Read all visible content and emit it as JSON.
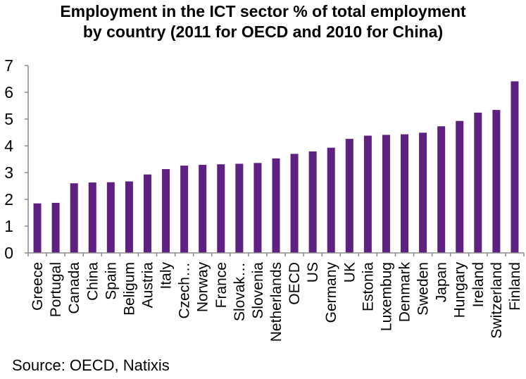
{
  "chart_data": {
    "type": "bar",
    "title_lines": [
      "Employment in the ICT sector % of total employment",
      "by country (2011 for OECD and 2010 for China)"
    ],
    "categories": [
      "Greece",
      "Portugal",
      "Canada",
      "China",
      "Spain",
      "Beligum",
      "Austria",
      "Italy",
      "Czech…",
      "Norway",
      "France",
      "Slovak…",
      "Slovenia",
      "Netherlands",
      "OECD",
      "US",
      "Germany",
      "UK",
      "Estonia",
      "Luxembug",
      "Denmark",
      "Sweden",
      "Japan",
      "Hungary",
      "Ireland",
      "Switzerland",
      "Finland"
    ],
    "values": [
      1.85,
      1.87,
      2.6,
      2.63,
      2.64,
      2.67,
      2.93,
      3.13,
      3.26,
      3.29,
      3.31,
      3.33,
      3.36,
      3.53,
      3.7,
      3.79,
      3.93,
      4.26,
      4.38,
      4.41,
      4.43,
      4.49,
      4.73,
      4.93,
      5.24,
      5.34,
      6.41
    ],
    "yticks": [
      "0",
      "1",
      "2",
      "3",
      "4",
      "5",
      "6",
      "7"
    ],
    "ylim": [
      0,
      7
    ],
    "xlabel": "",
    "ylabel": "",
    "grid": false,
    "colors": {
      "bar": "#5e2182",
      "axis": "#8a8a8a",
      "text": "#000000"
    }
  },
  "source": "Source: OECD, Natixis"
}
